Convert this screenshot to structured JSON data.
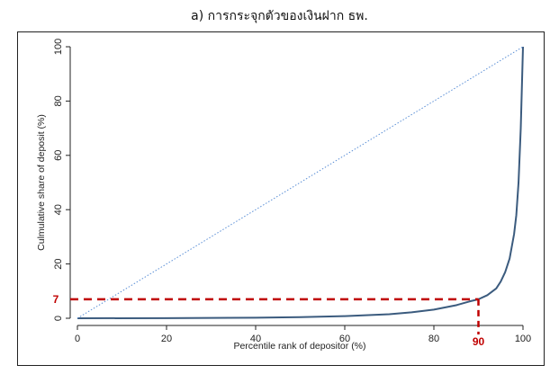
{
  "chart_data": {
    "type": "line",
    "title": "a) การกระจุกตัวของเงินฝาก ธพ.",
    "xlabel": "Percentile rank of depositor (%)",
    "ylabel": "Culmulative share of deposit (%)",
    "xlim": [
      0,
      100
    ],
    "ylim": [
      0,
      100
    ],
    "x_ticks": [
      0,
      20,
      40,
      60,
      80,
      100
    ],
    "y_ticks": [
      0,
      20,
      40,
      60,
      80,
      100
    ],
    "grid": false,
    "series": [
      {
        "style": "solid",
        "color": "#3b5b7e",
        "x": [
          0,
          20,
          40,
          50,
          60,
          70,
          75,
          80,
          85,
          88,
          90,
          92,
          94,
          95,
          96,
          97,
          98,
          98.5,
          99,
          99.5,
          100
        ],
        "y": [
          0,
          0.05,
          0.2,
          0.4,
          0.8,
          1.5,
          2.2,
          3.2,
          4.8,
          6.2,
          7,
          8.5,
          11,
          13.5,
          17,
          22,
          31,
          38,
          50,
          70,
          100
        ]
      },
      {
        "style": "dotted",
        "color": "#5b8fd6",
        "x": [
          0,
          100
        ],
        "y": [
          0,
          100
        ]
      }
    ],
    "annotations": [
      {
        "x": 90,
        "y": 7,
        "x_label": "90",
        "y_label": "7",
        "color": "#c00000",
        "style": "dashed"
      }
    ]
  }
}
